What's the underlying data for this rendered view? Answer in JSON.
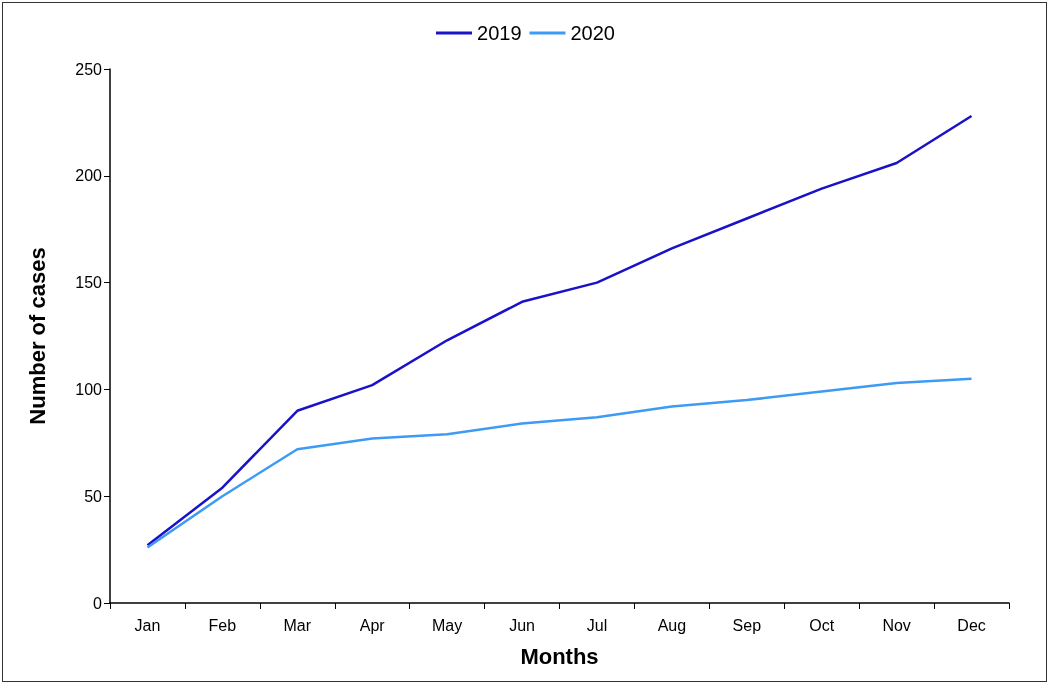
{
  "chart_data": {
    "type": "line",
    "xlabel": "Months",
    "ylabel": "Number of cases",
    "categories": [
      "Jan",
      "Feb",
      "Mar",
      "Apr",
      "May",
      "Jun",
      "Jul",
      "Aug",
      "Sep",
      "Oct",
      "Nov",
      "Dec"
    ],
    "series": [
      {
        "name": "2019",
        "color": "#1a12c8",
        "values": [
          27,
          54,
          90,
          102,
          123,
          141,
          150,
          166,
          180,
          194,
          206,
          228
        ]
      },
      {
        "name": "2020",
        "color": "#3d9bf5",
        "values": [
          26,
          50,
          72,
          77,
          79,
          84,
          87,
          92,
          95,
          99,
          103,
          105
        ]
      }
    ],
    "ylim": [
      0,
      250
    ],
    "yticks": [
      0,
      50,
      100,
      150,
      200,
      250
    ],
    "grid": false,
    "legend": "top",
    "marker": "none",
    "line_style": "solid"
  }
}
